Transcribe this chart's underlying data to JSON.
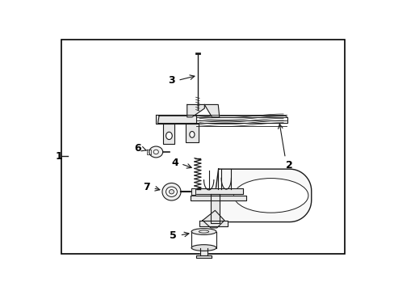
{
  "bg_color": "#ffffff",
  "border_color": "#000000",
  "line_color": "#1a1a1a",
  "fig_width": 4.89,
  "fig_height": 3.6,
  "dpi": 100
}
